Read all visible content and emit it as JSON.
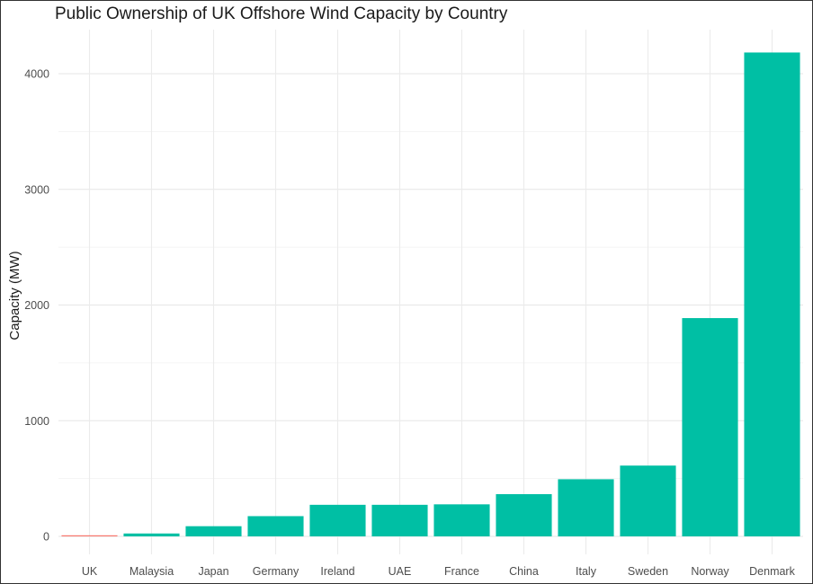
{
  "chart_data": {
    "type": "bar",
    "title": "Public Ownership of UK Offshore Wind Capacity by Country",
    "xlabel": "",
    "ylabel": "Capacity (MW)",
    "categories": [
      "UK",
      "Malaysia",
      "Japan",
      "Germany",
      "Ireland",
      "UAE",
      "France",
      "China",
      "Italy",
      "Sweden",
      "Norway",
      "Denmark"
    ],
    "values": [
      8,
      25,
      88,
      175,
      273,
      273,
      277,
      365,
      494,
      612,
      1887,
      4183
    ],
    "bar_colors": [
      "#F8766D",
      "#00BFA4",
      "#00BFA4",
      "#00BFA4",
      "#00BFA4",
      "#00BFA4",
      "#00BFA4",
      "#00BFA4",
      "#00BFA4",
      "#00BFA4",
      "#00BFA4",
      "#00BFA4"
    ],
    "yticks": [
      0,
      1000,
      2000,
      3000,
      4000
    ],
    "ylim": [
      0,
      4400
    ],
    "grid": true,
    "legend": "none"
  }
}
